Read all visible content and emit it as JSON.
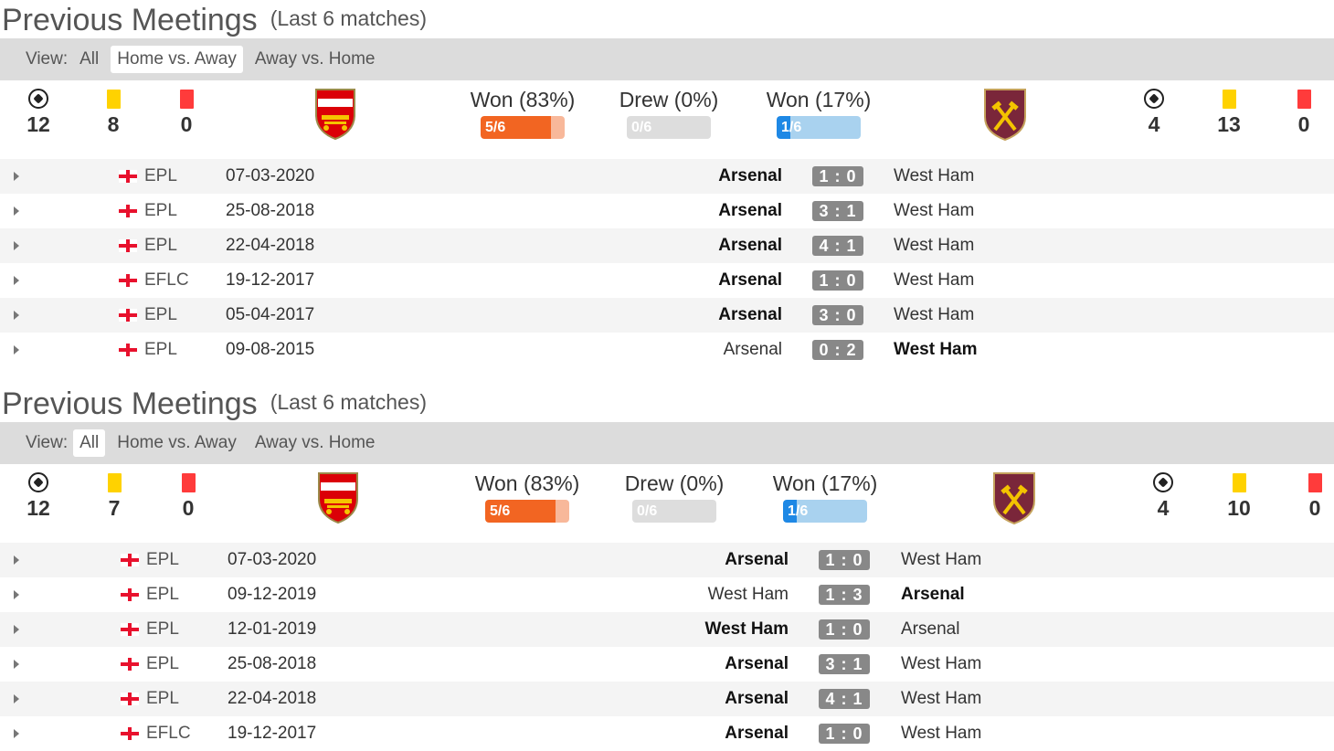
{
  "sections": [
    {
      "title": "Previous Meetings",
      "subtitle": "(Last 6 matches)",
      "view_label": "View:",
      "view_options": [
        "All",
        "Home vs. Away",
        "Away vs. Home"
      ],
      "active_view": "Home vs. Away",
      "home_stats": {
        "goals": "12",
        "yellow": "8",
        "red": "0"
      },
      "away_stats": {
        "goals": "4",
        "yellow": "13",
        "red": "0"
      },
      "home_win": {
        "label": "Won (83%)",
        "count": "5/6",
        "fraction": 0.833
      },
      "draw": {
        "label": "Drew (0%)",
        "count": "0/6",
        "fraction": 0
      },
      "away_win": {
        "label": "Won (17%)",
        "count": "1/6",
        "fraction": 0.167
      },
      "home_logo_text": "Arsenal",
      "away_logo_text": "WEST HAM",
      "matches": [
        {
          "comp": "EPL",
          "date": "07-03-2020",
          "home": "Arsenal",
          "score": "1 : 0",
          "away": "West Ham",
          "winner": "home"
        },
        {
          "comp": "EPL",
          "date": "25-08-2018",
          "home": "Arsenal",
          "score": "3 : 1",
          "away": "West Ham",
          "winner": "home"
        },
        {
          "comp": "EPL",
          "date": "22-04-2018",
          "home": "Arsenal",
          "score": "4 : 1",
          "away": "West Ham",
          "winner": "home"
        },
        {
          "comp": "EFLC",
          "date": "19-12-2017",
          "home": "Arsenal",
          "score": "1 : 0",
          "away": "West Ham",
          "winner": "home"
        },
        {
          "comp": "EPL",
          "date": "05-04-2017",
          "home": "Arsenal",
          "score": "3 : 0",
          "away": "West Ham",
          "winner": "home"
        },
        {
          "comp": "EPL",
          "date": "09-08-2015",
          "home": "Arsenal",
          "score": "0 : 2",
          "away": "West Ham",
          "winner": "away"
        }
      ]
    },
    {
      "title": "Previous Meetings",
      "subtitle": "(Last 6 matches)",
      "view_label": "View:",
      "view_options": [
        "All",
        "Home vs. Away",
        "Away vs. Home"
      ],
      "active_view": "All",
      "home_stats": {
        "goals": "12",
        "yellow": "7",
        "red": "0"
      },
      "away_stats": {
        "goals": "4",
        "yellow": "10",
        "red": "0"
      },
      "home_win": {
        "label": "Won (83%)",
        "count": "5/6",
        "fraction": 0.833
      },
      "draw": {
        "label": "Drew (0%)",
        "count": "0/6",
        "fraction": 0
      },
      "away_win": {
        "label": "Won (17%)",
        "count": "1/6",
        "fraction": 0.167
      },
      "home_logo_text": "Arsenal",
      "away_logo_text": "WEST HAM",
      "matches": [
        {
          "comp": "EPL",
          "date": "07-03-2020",
          "home": "Arsenal",
          "score": "1 : 0",
          "away": "West Ham",
          "winner": "home"
        },
        {
          "comp": "EPL",
          "date": "09-12-2019",
          "home": "West Ham",
          "score": "1 : 3",
          "away": "Arsenal",
          "winner": "away"
        },
        {
          "comp": "EPL",
          "date": "12-01-2019",
          "home": "West Ham",
          "score": "1 : 0",
          "away": "Arsenal",
          "winner": "home"
        },
        {
          "comp": "EPL",
          "date": "25-08-2018",
          "home": "Arsenal",
          "score": "3 : 1",
          "away": "West Ham",
          "winner": "home"
        },
        {
          "comp": "EPL",
          "date": "22-04-2018",
          "home": "Arsenal",
          "score": "4 : 1",
          "away": "West Ham",
          "winner": "home"
        },
        {
          "comp": "EFLC",
          "date": "19-12-2017",
          "home": "Arsenal",
          "score": "1 : 0",
          "away": "West Ham",
          "winner": "home"
        }
      ]
    }
  ],
  "colors": {
    "home_win": "#f26522",
    "home_win_bg": "#f8b89a",
    "draw_bg": "#dddddd",
    "away_win": "#1e88e5",
    "away_win_bg": "#a9d2ef",
    "score_bg": "#888888"
  }
}
